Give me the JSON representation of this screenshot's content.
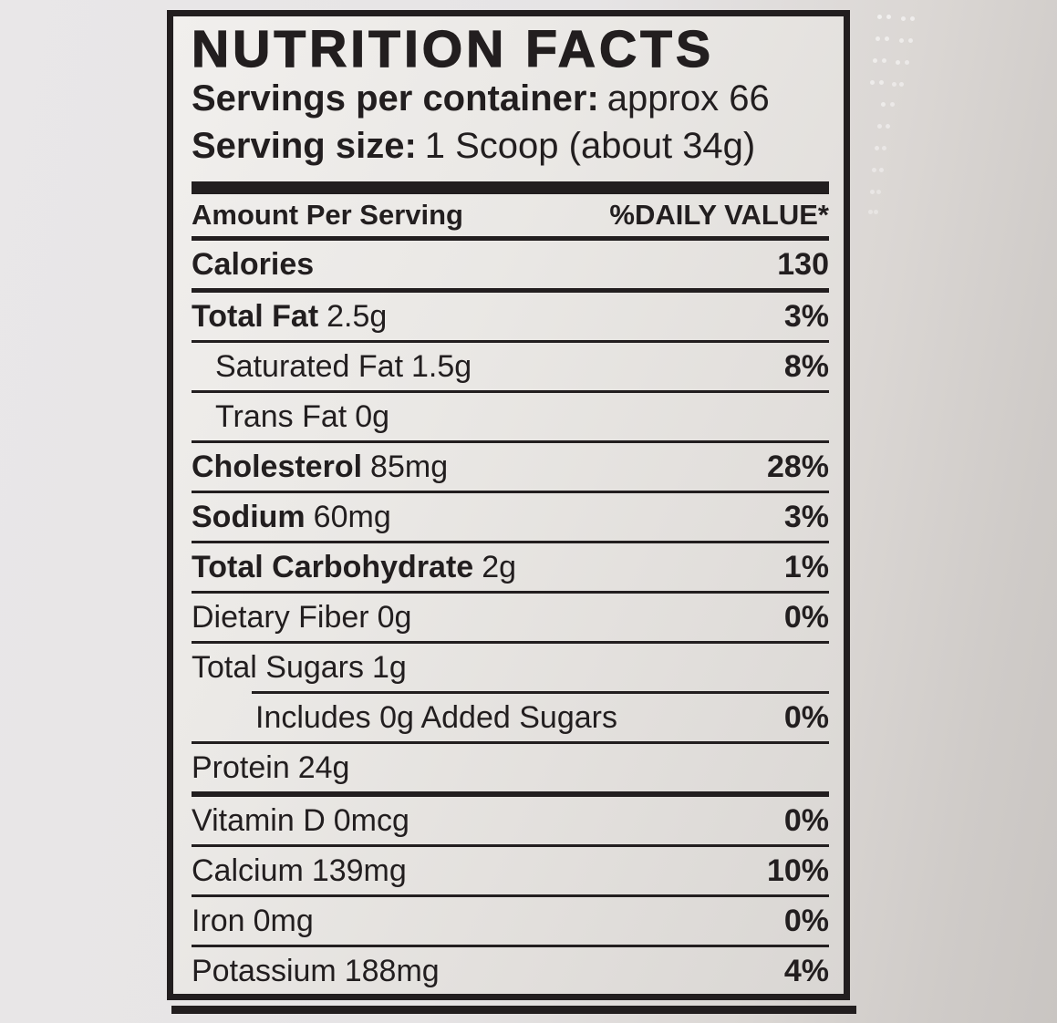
{
  "colors": {
    "ink": "#221e1f",
    "label_background": "#e8e6e3",
    "scene_background": "#d9d5d2"
  },
  "panel": {
    "title": "NUTRITION FACTS",
    "servings_per_container": {
      "label": "Servings per container:",
      "value": "approx 66"
    },
    "serving_size": {
      "label": "Serving size:",
      "value": "1 Scoop (about 34g)"
    },
    "columns": {
      "amount_header": "Amount Per Serving",
      "daily_value_header": "%DAILY VALUE*"
    },
    "rows": [
      {
        "name": "Calories",
        "amount": "",
        "dv": "130"
      },
      {
        "name": "Total Fat",
        "amount": "2.5g",
        "dv": "3%"
      },
      {
        "name": "Saturated Fat",
        "amount": "1.5g",
        "dv": "8%"
      },
      {
        "name": "Trans Fat",
        "amount": "0g",
        "dv": ""
      },
      {
        "name": "Cholesterol",
        "amount": "85mg",
        "dv": "28%"
      },
      {
        "name": "Sodium",
        "amount": "60mg",
        "dv": "3%"
      },
      {
        "name": "Total Carbohydrate",
        "amount": "2g",
        "dv": "1%"
      },
      {
        "name": "Dietary Fiber",
        "amount": "0g",
        "dv": "0%"
      },
      {
        "name": "Total Sugars",
        "amount": "1g",
        "dv": ""
      },
      {
        "name": "Includes 0g Added Sugars",
        "amount": "",
        "dv": "0%"
      },
      {
        "name": "Protein",
        "amount": "24g",
        "dv": ""
      },
      {
        "name": "Vitamin D",
        "amount": "0mcg",
        "dv": "0%"
      },
      {
        "name": "Calcium",
        "amount": "139mg",
        "dv": "10%"
      },
      {
        "name": "Iron",
        "amount": "0mg",
        "dv": "0%"
      },
      {
        "name": "Potassium",
        "amount": "188mg",
        "dv": "4%"
      }
    ]
  }
}
